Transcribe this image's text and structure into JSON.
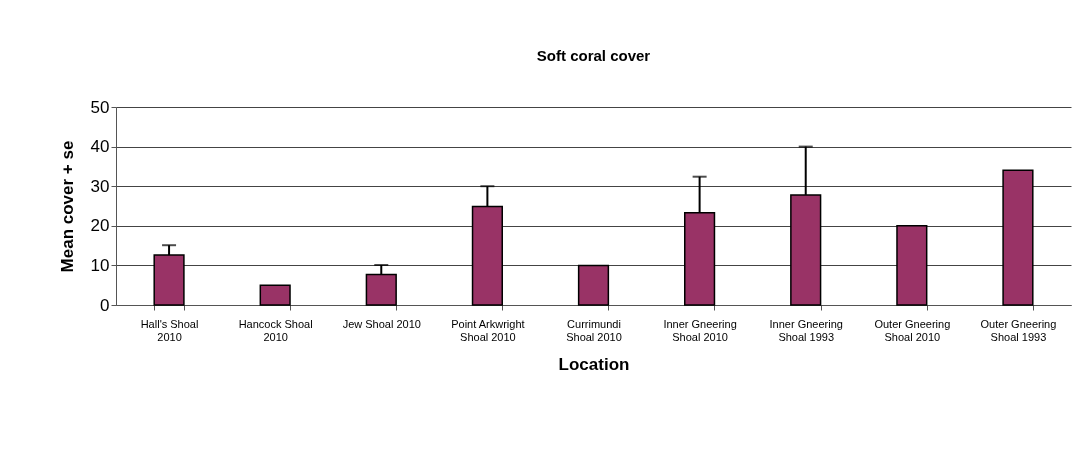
{
  "chart_data": {
    "type": "bar",
    "title": "Soft coral cover",
    "xlabel": "Location",
    "ylabel": "Mean cover + se",
    "categories": [
      "Hall's Shoal 2010",
      "Hancock Shoal 2010",
      "Jew Shoal 2010",
      "Point Arkwright Shoal 2010",
      "Currimundi Shoal 2010",
      "Inner Gneering Shoal 2010",
      "Inner Gneering Shoal 1993",
      "Outer Gneering Shoal 2010",
      "Outer Gneering Shoal 1993"
    ],
    "values": [
      12.6,
      5,
      7.7,
      24.9,
      10,
      23.3,
      27.8,
      20,
      34
    ],
    "errors": [
      [
        12.6,
        15.1
      ],
      null,
      [
        7.7,
        10.1
      ],
      [
        24.9,
        30
      ],
      null,
      [
        23.3,
        32.4
      ],
      [
        27.8,
        40
      ],
      null,
      null
    ],
    "color": "#993366",
    "ylim": [
      0,
      50
    ],
    "yticks": [
      0,
      10,
      20,
      30,
      40,
      50
    ],
    "grid": "y"
  }
}
